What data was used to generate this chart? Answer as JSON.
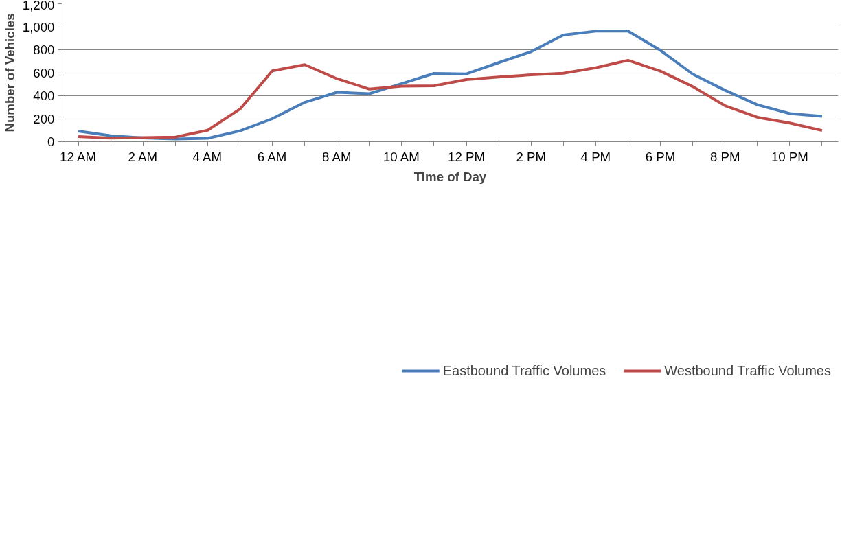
{
  "chart_data": {
    "type": "line",
    "xlabel": "Time of Day",
    "ylabel": "Number of Vehicles",
    "categories": [
      "12 AM",
      null,
      "2 AM",
      null,
      "4 AM",
      null,
      "6 AM",
      null,
      "8 AM",
      null,
      "10 AM",
      null,
      "12 PM",
      null,
      "2 PM",
      null,
      "4 PM",
      null,
      "6 PM",
      null,
      "8 PM",
      null,
      "10 PM",
      null
    ],
    "series": [
      {
        "name": "Eastbound Traffic Volumes",
        "color": "#4a7ebb",
        "values": [
          92,
          52,
          33,
          24,
          30,
          95,
          200,
          343,
          430,
          418,
          505,
          594,
          590,
          688,
          783,
          928,
          962,
          963,
          795,
          588,
          447,
          322,
          245,
          221
        ]
      },
      {
        "name": "Westbound Traffic Volumes",
        "color": "#be4b48",
        "values": [
          45,
          32,
          36,
          41,
          100,
          284,
          616,
          670,
          548,
          458,
          483,
          487,
          540,
          563,
          582,
          595,
          643,
          708,
          614,
          480,
          313,
          212,
          163,
          98
        ]
      }
    ],
    "ylim": [
      0,
      1200
    ],
    "yticks": [
      0,
      {
        "value": 200,
        "label": "200"
      },
      {
        "value": 400,
        "label": "400"
      },
      {
        "value": 600,
        "label": "600"
      },
      {
        "value": 800,
        "label": "800"
      },
      {
        "value": 1000,
        "label": "1,000"
      },
      {
        "value": 1200,
        "label": "1,200"
      }
    ],
    "grid": "y",
    "legend": "bottom",
    "marker": "none",
    "line_style": "solid"
  }
}
